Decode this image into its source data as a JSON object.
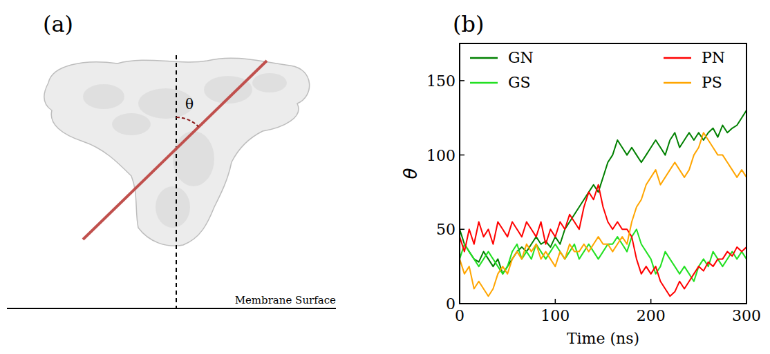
{
  "diagram": {
    "panel_labels": [
      "(a)",
      "(b)"
    ],
    "angle_label": "θ",
    "membrane_label": "Membrane Surface"
  },
  "chart_data": {
    "type": "line",
    "x_label": "Time (ns)",
    "y_label": "θ",
    "xlim": [
      0,
      300
    ],
    "xticks": [
      0,
      100,
      200,
      300
    ],
    "ylim": [
      0,
      175
    ],
    "yticks": [
      0,
      50,
      100,
      150
    ],
    "grid": false,
    "legend": "top",
    "x": [
      0,
      5,
      10,
      15,
      20,
      25,
      30,
      35,
      40,
      45,
      50,
      55,
      60,
      65,
      70,
      75,
      80,
      85,
      90,
      95,
      100,
      105,
      110,
      115,
      120,
      125,
      130,
      135,
      140,
      145,
      150,
      155,
      160,
      165,
      170,
      175,
      180,
      185,
      190,
      195,
      200,
      205,
      210,
      215,
      220,
      225,
      230,
      235,
      240,
      245,
      250,
      255,
      260,
      265,
      270,
      275,
      280,
      285,
      290,
      295,
      300
    ],
    "series": [
      {
        "name": "GN",
        "color": "#008000",
        "values": [
          50,
          40,
          35,
          30,
          28,
          35,
          30,
          25,
          30,
          20,
          25,
          30,
          35,
          38,
          35,
          40,
          45,
          40,
          42,
          38,
          45,
          40,
          50,
          55,
          60,
          65,
          70,
          75,
          80,
          75,
          85,
          95,
          100,
          110,
          105,
          100,
          105,
          100,
          95,
          100,
          105,
          110,
          105,
          100,
          110,
          115,
          105,
          110,
          115,
          110,
          115,
          110,
          115,
          118,
          112,
          120,
          115,
          118,
          120,
          125,
          130
        ]
      },
      {
        "name": "GS",
        "color": "#22e022",
        "values": [
          30,
          40,
          35,
          30,
          25,
          30,
          35,
          30,
          25,
          20,
          25,
          35,
          40,
          30,
          35,
          30,
          40,
          35,
          30,
          35,
          40,
          35,
          30,
          35,
          40,
          30,
          35,
          40,
          35,
          30,
          35,
          40,
          40,
          45,
          40,
          35,
          45,
          50,
          40,
          35,
          30,
          20,
          25,
          35,
          30,
          25,
          20,
          25,
          20,
          15,
          25,
          30,
          25,
          35,
          30,
          25,
          30,
          35,
          30,
          35,
          30
        ]
      },
      {
        "name": "PN",
        "color": "#ff0000",
        "values": [
          45,
          35,
          50,
          40,
          55,
          45,
          50,
          40,
          55,
          50,
          45,
          55,
          50,
          45,
          55,
          50,
          45,
          55,
          40,
          50,
          45,
          55,
          50,
          60,
          55,
          50,
          65,
          75,
          70,
          80,
          65,
          55,
          50,
          55,
          50,
          50,
          45,
          30,
          20,
          25,
          20,
          25,
          15,
          10,
          5,
          8,
          15,
          10,
          15,
          20,
          25,
          22,
          28,
          25,
          30,
          30,
          35,
          32,
          38,
          35,
          38
        ]
      },
      {
        "name": "PS",
        "color": "#ffa500",
        "values": [
          30,
          20,
          25,
          10,
          15,
          10,
          5,
          10,
          20,
          25,
          20,
          30,
          35,
          30,
          40,
          35,
          40,
          30,
          35,
          30,
          25,
          35,
          30,
          40,
          35,
          35,
          40,
          35,
          40,
          45,
          40,
          40,
          35,
          40,
          45,
          40,
          55,
          65,
          70,
          80,
          85,
          90,
          80,
          85,
          90,
          95,
          90,
          85,
          90,
          100,
          105,
          115,
          110,
          105,
          100,
          100,
          95,
          90,
          85,
          90,
          85
        ]
      }
    ]
  }
}
